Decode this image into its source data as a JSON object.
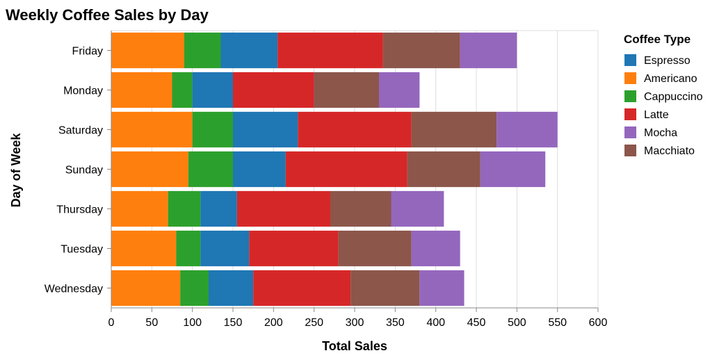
{
  "chart_data": {
    "type": "bar",
    "orientation": "horizontal",
    "stacked": true,
    "title": "Weekly Coffee Sales by Day",
    "xlabel": "Total Sales",
    "ylabel": "Day of Week",
    "xlim": [
      0,
      600
    ],
    "xticks": [
      0,
      50,
      100,
      150,
      200,
      250,
      300,
      350,
      400,
      450,
      500,
      550,
      600
    ],
    "grid": true,
    "legend_title": "Coffee Type",
    "legend_position": "right",
    "categories": [
      "Friday",
      "Monday",
      "Saturday",
      "Sunday",
      "Thursday",
      "Tuesday",
      "Wednesday"
    ],
    "stack_order": [
      "Americano",
      "Cappuccino",
      "Espresso",
      "Latte",
      "Macchiato",
      "Mocha"
    ],
    "legend_order": [
      "Espresso",
      "Americano",
      "Cappuccino",
      "Latte",
      "Mocha",
      "Macchiato"
    ],
    "series": [
      {
        "name": "Americano",
        "color": "#ff7f0e",
        "values": [
          90,
          75,
          100,
          95,
          70,
          80,
          85
        ]
      },
      {
        "name": "Cappuccino",
        "color": "#2ca02c",
        "values": [
          45,
          25,
          50,
          55,
          40,
          30,
          35
        ]
      },
      {
        "name": "Espresso",
        "color": "#1f77b4",
        "values": [
          70,
          50,
          80,
          65,
          45,
          60,
          55
        ]
      },
      {
        "name": "Latte",
        "color": "#d62728",
        "values": [
          130,
          100,
          140,
          150,
          115,
          110,
          120
        ]
      },
      {
        "name": "Macchiato",
        "color": "#8c564b",
        "values": [
          95,
          80,
          105,
          90,
          75,
          90,
          85
        ]
      },
      {
        "name": "Mocha",
        "color": "#9467bd",
        "values": [
          70,
          50,
          75,
          80,
          65,
          60,
          55
        ]
      }
    ]
  }
}
